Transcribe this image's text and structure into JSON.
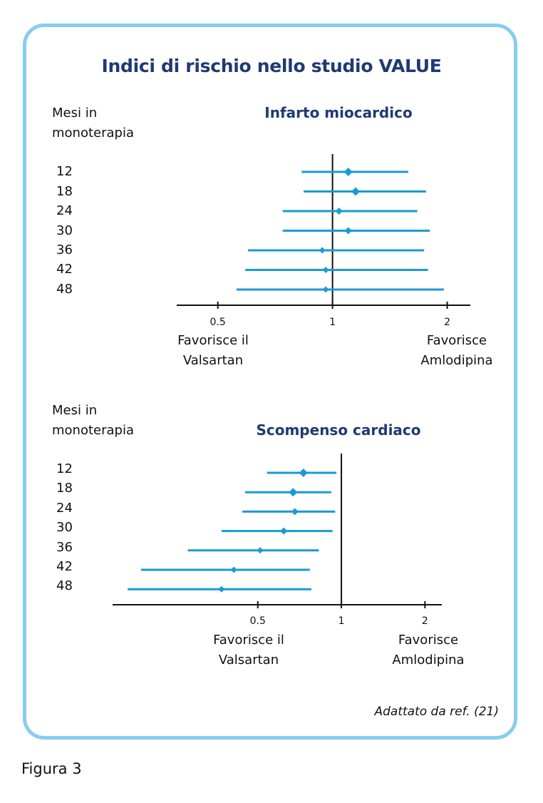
{
  "title": "Indici di rischio nello studio VALUE",
  "credit": "Adattato da ref. (21)",
  "figure_label": "Figura 3",
  "colors": {
    "frame": "#87cdf0",
    "ci_line": "#1a9ad6",
    "point": "#1a9ad6",
    "title": "#1f3a73",
    "axis": "#111111"
  },
  "chart_data": [
    {
      "type": "forest",
      "title": "Infarto miocardico",
      "row_header": [
        "Mesi in",
        "monoterapia"
      ],
      "categories": [
        "12",
        "18",
        "24",
        "30",
        "36",
        "42",
        "48"
      ],
      "estimates": [
        1.1,
        1.15,
        1.04,
        1.1,
        0.94,
        0.96,
        0.96
      ],
      "ci_lower": [
        0.83,
        0.84,
        0.74,
        0.74,
        0.6,
        0.59,
        0.56
      ],
      "ci_upper": [
        1.58,
        1.76,
        1.67,
        1.8,
        1.74,
        1.78,
        1.96
      ],
      "x_scale": "log",
      "xlim": [
        0.39,
        2.3
      ],
      "x_ticks": [
        0.5,
        1,
        2
      ],
      "x_tick_labels": [
        "0.5",
        "1",
        "2"
      ],
      "reference_line": 1,
      "left_label": [
        "Favorisce il",
        "Valsartan"
      ],
      "right_label": [
        "Favorisce",
        "Amlodipina"
      ]
    },
    {
      "type": "forest",
      "title": "Scompenso cardiaco",
      "row_header": [
        "Mesi in",
        "monoterapia"
      ],
      "categories": [
        "12",
        "18",
        "24",
        "30",
        "36",
        "42",
        "48"
      ],
      "estimates": [
        0.73,
        0.67,
        0.68,
        0.62,
        0.51,
        0.41,
        0.37
      ],
      "ci_lower": [
        0.54,
        0.45,
        0.44,
        0.37,
        0.28,
        0.19,
        0.17
      ],
      "ci_upper": [
        0.96,
        0.92,
        0.95,
        0.93,
        0.83,
        0.77,
        0.78
      ],
      "x_scale": "log",
      "xlim": [
        0.15,
        2.3
      ],
      "x_ticks": [
        0.5,
        1,
        2
      ],
      "x_tick_labels": [
        "0.5",
        "1",
        "2"
      ],
      "reference_line": 1,
      "left_label": [
        "Favorisce il",
        "Valsartan"
      ],
      "right_label": [
        "Favorisce",
        "Amlodipina"
      ]
    }
  ]
}
